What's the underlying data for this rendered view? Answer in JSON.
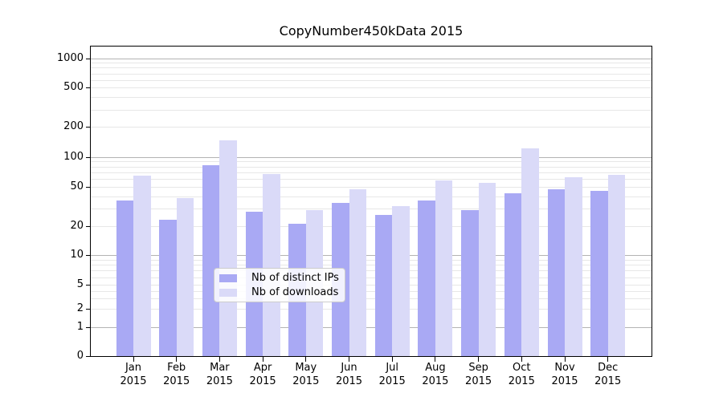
{
  "chart_data": {
    "type": "bar",
    "title": "CopyNumber450kData 2015",
    "categories": [
      "Jan",
      "Feb",
      "Mar",
      "Apr",
      "May",
      "Jun",
      "Jul",
      "Aug",
      "Sep",
      "Oct",
      "Nov",
      "Dec"
    ],
    "category_year": "2015",
    "series": [
      {
        "name": "Nb of distinct IPs",
        "color": "#a9a9f4",
        "values": [
          36,
          23,
          82,
          28,
          21,
          34,
          26,
          36,
          29,
          43,
          47,
          45
        ]
      },
      {
        "name": "Nb of downloads",
        "color": "#dadaf8",
        "values": [
          65,
          38,
          146,
          67,
          29,
          47,
          32,
          58,
          55,
          123,
          62,
          66
        ]
      }
    ],
    "yticks": [
      0,
      1,
      2,
      5,
      10,
      20,
      50,
      100,
      200,
      500,
      1000
    ],
    "ylim": [
      0,
      1300
    ],
    "yscale": "log-like (pseudo-log with 0 baseline)",
    "xlabel": "",
    "ylabel": "",
    "grid": true,
    "legend_position": "lower center, inside axes"
  }
}
